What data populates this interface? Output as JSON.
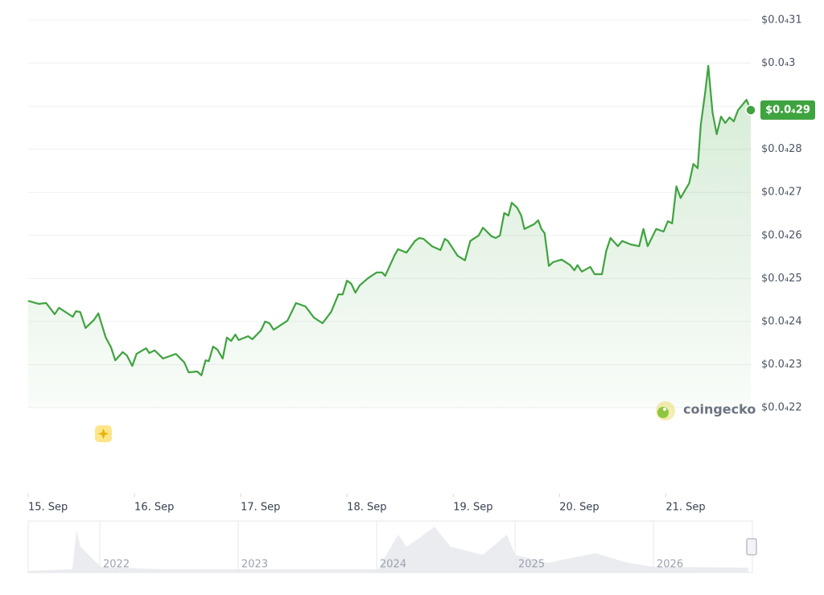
{
  "chart_data": {
    "type": "line",
    "color": "#3fa33f",
    "grid": true,
    "xlim": [
      15,
      21.8
    ],
    "xticks": [
      {
        "value": 15,
        "label": "15. Sep"
      },
      {
        "value": 16,
        "label": "16. Sep"
      },
      {
        "value": 17,
        "label": "17. Sep"
      },
      {
        "value": 18,
        "label": "18. Sep"
      },
      {
        "value": 19,
        "label": "19. Sep"
      },
      {
        "value": 20,
        "label": "20. Sep"
      },
      {
        "value": 21,
        "label": "21. Sep"
      }
    ],
    "ylim": [
      2.2e-05,
      3.1e-05
    ],
    "yticks": [
      {
        "value": 2.2e-05,
        "label": "$0.0₄22"
      },
      {
        "value": 2.3e-05,
        "label": "$0.0₄23"
      },
      {
        "value": 2.4e-05,
        "label": "$0.0₄24"
      },
      {
        "value": 2.5e-05,
        "label": "$0.0₄25"
      },
      {
        "value": 2.6e-05,
        "label": "$0.0₄26"
      },
      {
        "value": 2.7e-05,
        "label": "$0.0₄27"
      },
      {
        "value": 2.8e-05,
        "label": "$0.0₄28"
      },
      {
        "value": 2.9e-05,
        "label": "$0.0₄29"
      },
      {
        "value": 3e-05,
        "label": "$0.0₄3"
      },
      {
        "value": 3.1e-05,
        "label": "$0.0₄31"
      }
    ],
    "x": [
      15.0,
      15.1,
      15.17,
      15.25,
      15.29,
      15.42,
      15.45,
      15.49,
      15.54,
      15.62,
      15.66,
      15.73,
      15.78,
      15.82,
      15.89,
      15.93,
      15.98,
      16.02,
      16.11,
      16.14,
      16.19,
      16.27,
      16.39,
      16.47,
      16.51,
      16.59,
      16.63,
      16.67,
      16.7,
      16.74,
      16.78,
      16.83,
      16.87,
      16.91,
      16.95,
      16.98,
      17.07,
      17.11,
      17.19,
      17.23,
      17.27,
      17.31,
      17.44,
      17.52,
      17.61,
      17.69,
      17.77,
      17.85,
      17.92,
      17.96,
      18.0,
      18.04,
      18.08,
      18.12,
      18.2,
      18.28,
      18.33,
      18.36,
      18.45,
      18.48,
      18.56,
      18.64,
      18.68,
      18.72,
      18.8,
      18.88,
      18.92,
      18.95,
      19.04,
      19.11,
      19.16,
      19.24,
      19.28,
      19.36,
      19.4,
      19.44,
      19.48,
      19.52,
      19.55,
      19.6,
      19.64,
      19.67,
      19.76,
      19.8,
      19.83,
      19.86,
      19.9,
      19.94,
      20.02,
      20.1,
      20.14,
      20.17,
      20.21,
      20.29,
      20.33,
      20.4,
      20.44,
      20.48,
      20.55,
      20.59,
      20.67,
      20.75,
      20.79,
      20.83,
      20.91,
      20.98,
      21.02,
      21.06,
      21.1,
      21.14,
      21.22,
      21.26,
      21.3,
      21.33,
      21.37,
      21.4,
      21.44,
      21.48,
      21.52,
      21.56,
      21.6,
      21.64,
      21.68,
      21.76,
      21.8
    ],
    "values": [
      2.448e-05,
      2.441e-05,
      2.443e-05,
      2.417e-05,
      2.432e-05,
      2.411e-05,
      2.424e-05,
      2.422e-05,
      2.385e-05,
      2.404e-05,
      2.419e-05,
      2.363e-05,
      2.34e-05,
      2.31e-05,
      2.329e-05,
      2.321e-05,
      2.297e-05,
      2.325e-05,
      2.338e-05,
      2.327e-05,
      2.333e-05,
      2.314e-05,
      2.325e-05,
      2.305e-05,
      2.282e-05,
      2.284e-05,
      2.275e-05,
      2.31e-05,
      2.308e-05,
      2.342e-05,
      2.335e-05,
      2.314e-05,
      2.363e-05,
      2.355e-05,
      2.37e-05,
      2.357e-05,
      2.366e-05,
      2.359e-05,
      2.379e-05,
      2.4e-05,
      2.396e-05,
      2.381e-05,
      2.402e-05,
      2.443e-05,
      2.435e-05,
      2.409e-05,
      2.396e-05,
      2.422e-05,
      2.463e-05,
      2.463e-05,
      2.495e-05,
      2.488e-05,
      2.467e-05,
      2.484e-05,
      2.501e-05,
      2.514e-05,
      2.514e-05,
      2.506e-05,
      2.555e-05,
      2.568e-05,
      2.56e-05,
      2.587e-05,
      2.594e-05,
      2.592e-05,
      2.575e-05,
      2.566e-05,
      2.592e-05,
      2.587e-05,
      2.553e-05,
      2.542e-05,
      2.587e-05,
      2.6e-05,
      2.618e-05,
      2.598e-05,
      2.594e-05,
      2.6e-05,
      2.652e-05,
      2.646e-05,
      2.676e-05,
      2.665e-05,
      2.646e-05,
      2.615e-05,
      2.626e-05,
      2.635e-05,
      2.615e-05,
      2.605e-05,
      2.529e-05,
      2.538e-05,
      2.544e-05,
      2.531e-05,
      2.519e-05,
      2.531e-05,
      2.516e-05,
      2.527e-05,
      2.51e-05,
      2.51e-05,
      2.564e-05,
      2.594e-05,
      2.575e-05,
      2.587e-05,
      2.579e-05,
      2.575e-05,
      2.615e-05,
      2.575e-05,
      2.615e-05,
      2.609e-05,
      2.633e-05,
      2.628e-05,
      2.714e-05,
      2.687e-05,
      2.721e-05,
      2.766e-05,
      2.756e-05,
      2.857e-05,
      2.93e-05,
      2.994e-05,
      2.885e-05,
      2.835e-05,
      2.876e-05,
      2.861e-05,
      2.874e-05,
      2.865e-05,
      2.891e-05,
      2.915e-05,
      2.891e-05
    ],
    "current_price_label": "$0.0₄29",
    "watermark": "coingecko",
    "navigator_years": [
      "2022",
      "2023",
      "2024",
      "2025",
      "2026"
    ]
  }
}
